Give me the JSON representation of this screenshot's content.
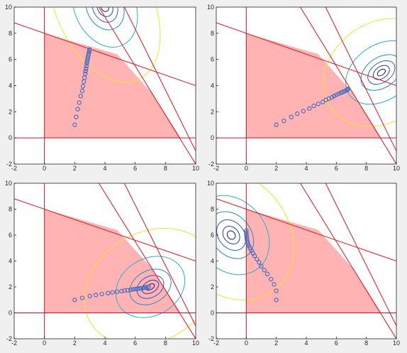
{
  "figure_background": "#f0f0f0",
  "colors": {
    "feasible_fill": "#ffb3b3",
    "constraint_line": "#e8141e",
    "axis_line": "#d0102a",
    "iterate_marker": "#4a6fbf",
    "contour_levels": [
      "#1a1a8c",
      "#2840b0",
      "#2a5ad0",
      "#1f8fc4",
      "#2ab0c8",
      "#f2e52b"
    ]
  },
  "chart_data": [
    {
      "type": "scatter",
      "panel": "top-left",
      "xlim": [
        -2,
        10
      ],
      "ylim": [
        -2,
        10
      ],
      "xticks": [
        -2,
        0,
        2,
        4,
        6,
        8,
        10
      ],
      "yticks": [
        -2,
        0,
        2,
        4,
        6,
        8,
        10
      ],
      "feasible_region": [
        [
          0,
          0
        ],
        [
          0,
          8
        ],
        [
          4.8,
          6.4
        ],
        [
          7.2,
          3.3
        ],
        [
          9,
          0
        ]
      ],
      "constraint_lines": [
        {
          "points": [
            [
              -2,
              8.8
            ],
            [
              10,
              4
            ]
          ]
        },
        {
          "points": [
            [
              2,
              13
            ],
            [
              10,
              -2
            ]
          ]
        },
        {
          "points": [
            [
              4,
              13
            ],
            [
              10,
              -1
            ]
          ]
        }
      ],
      "objective_center": [
        4,
        10
      ],
      "objective_contours": {
        "rx": [
          0.25,
          0.5,
          0.8,
          1.2,
          2.0,
          3.2
        ],
        "ry": [
          0.35,
          0.75,
          1.2,
          1.8,
          3.2,
          6.1
        ],
        "rotation_deg": -25
      },
      "iterates": {
        "x": [
          2.0,
          2.1,
          2.2,
          2.3,
          2.4,
          2.5,
          2.55,
          2.6,
          2.65,
          2.7,
          2.72,
          2.75,
          2.78,
          2.8,
          2.82,
          2.85,
          2.87,
          2.9,
          2.92,
          2.95,
          2.97,
          2.98
        ],
        "y": [
          1.0,
          1.6,
          2.2,
          2.7,
          3.2,
          3.6,
          3.95,
          4.3,
          4.6,
          4.9,
          5.1,
          5.3,
          5.5,
          5.7,
          5.85,
          6.0,
          6.15,
          6.3,
          6.42,
          6.55,
          6.65,
          6.75
        ]
      }
    },
    {
      "type": "scatter",
      "panel": "top-right",
      "xlim": [
        -2,
        10
      ],
      "ylim": [
        -2,
        10
      ],
      "xticks": [
        -2,
        0,
        2,
        4,
        6,
        8,
        10
      ],
      "yticks": [
        -2,
        0,
        2,
        4,
        6,
        8,
        10
      ],
      "feasible_region": [
        [
          0,
          0
        ],
        [
          0,
          8
        ],
        [
          4.8,
          6.4
        ],
        [
          7.2,
          3.3
        ],
        [
          9,
          0
        ]
      ],
      "constraint_lines": [
        {
          "points": [
            [
              -2,
              8.8
            ],
            [
              10,
              4
            ]
          ]
        },
        {
          "points": [
            [
              2,
              13
            ],
            [
              10,
              -2
            ]
          ]
        },
        {
          "points": [
            [
              4,
              13
            ],
            [
              10,
              -1
            ]
          ]
        }
      ],
      "objective_center": [
        9,
        5
      ],
      "objective_contours": {
        "rx": [
          0.3,
          0.6,
          1.0,
          1.5,
          2.6,
          4.1
        ],
        "ry": [
          0.2,
          0.45,
          0.75,
          1.15,
          2.1,
          3.8
        ],
        "rotation_deg": -35
      },
      "iterates": {
        "x": [
          2.0,
          2.5,
          3.0,
          3.4,
          3.8,
          4.2,
          4.5,
          4.8,
          5.1,
          5.3,
          5.5,
          5.7,
          5.85,
          6.0,
          6.15,
          6.3,
          6.4,
          6.5,
          6.6,
          6.7,
          6.75,
          6.8
        ],
        "y": [
          1.0,
          1.3,
          1.6,
          1.85,
          2.05,
          2.25,
          2.45,
          2.6,
          2.75,
          2.9,
          3.0,
          3.1,
          3.2,
          3.3,
          3.37,
          3.45,
          3.5,
          3.55,
          3.6,
          3.65,
          3.7,
          3.75
        ]
      }
    },
    {
      "type": "scatter",
      "panel": "bottom-left",
      "xlim": [
        -2,
        10
      ],
      "ylim": [
        -2,
        10
      ],
      "xticks": [
        -2,
        0,
        2,
        4,
        6,
        8,
        10
      ],
      "yticks": [
        -2,
        0,
        2,
        4,
        6,
        8,
        10
      ],
      "feasible_region": [
        [
          0,
          0
        ],
        [
          0,
          8
        ],
        [
          4.8,
          6.4
        ],
        [
          7.2,
          3.3
        ],
        [
          9,
          0
        ]
      ],
      "constraint_lines": [
        {
          "points": [
            [
              -2,
              8.8
            ],
            [
              10,
              4
            ]
          ]
        },
        {
          "points": [
            [
              2,
              13
            ],
            [
              10,
              -2
            ]
          ]
        },
        {
          "points": [
            [
              4,
              13
            ],
            [
              10,
              -1
            ]
          ]
        }
      ],
      "objective_center": [
        7,
        2
      ],
      "objective_contours": {
        "rx": [
          0.3,
          0.6,
          0.95,
          1.45,
          2.4,
          4.6
        ],
        "ry": [
          0.2,
          0.45,
          0.8,
          1.25,
          2.2,
          4.2
        ],
        "rotation_deg": -30
      },
      "iterates": {
        "x": [
          2.0,
          2.5,
          3.0,
          3.4,
          3.8,
          4.2,
          4.5,
          4.8,
          5.1,
          5.3,
          5.5,
          5.7,
          5.85,
          6.0,
          6.15,
          6.3,
          6.4,
          6.5,
          6.6,
          6.7,
          6.8,
          6.9
        ],
        "y": [
          1.0,
          1.15,
          1.3,
          1.38,
          1.45,
          1.52,
          1.58,
          1.63,
          1.68,
          1.72,
          1.75,
          1.78,
          1.81,
          1.84,
          1.86,
          1.88,
          1.9,
          1.92,
          1.94,
          1.96,
          1.98,
          2.0
        ]
      }
    },
    {
      "type": "scatter",
      "panel": "bottom-right",
      "xlim": [
        -2,
        10
      ],
      "ylim": [
        -2,
        10
      ],
      "xticks": [
        -2,
        0,
        2,
        4,
        6,
        8,
        10
      ],
      "yticks": [
        -2,
        0,
        2,
        4,
        6,
        8,
        10
      ],
      "feasible_region": [
        [
          0,
          0
        ],
        [
          0,
          8
        ],
        [
          4.8,
          6.4
        ],
        [
          7.2,
          3.3
        ],
        [
          9,
          0
        ]
      ],
      "constraint_lines": [
        {
          "points": [
            [
              -2,
              8.8
            ],
            [
              10,
              4
            ]
          ]
        },
        {
          "points": [
            [
              2,
              13
            ],
            [
              10,
              -2
            ]
          ]
        },
        {
          "points": [
            [
              4,
              13
            ],
            [
              10,
              -1
            ]
          ]
        }
      ],
      "objective_center": [
        -1,
        6
      ],
      "objective_contours": {
        "rx": [
          0.25,
          0.5,
          0.85,
          1.3,
          2.3,
          3.8
        ],
        "ry": [
          0.35,
          0.75,
          1.3,
          2.0,
          3.3,
          5.4
        ],
        "rotation_deg": -40
      },
      "iterates": {
        "x": [
          2.0,
          2.0,
          1.85,
          1.65,
          1.4,
          1.2,
          1.0,
          0.85,
          0.7,
          0.55,
          0.45,
          0.35,
          0.25,
          0.18,
          0.12,
          0.08,
          0.05,
          0.03,
          0.02,
          0.01,
          0.0,
          0.0
        ],
        "y": [
          1.0,
          1.7,
          2.2,
          2.6,
          3.0,
          3.3,
          3.6,
          3.9,
          4.15,
          4.4,
          4.6,
          4.8,
          5.0,
          5.15,
          5.3,
          5.45,
          5.6,
          5.75,
          5.9,
          6.05,
          6.2,
          6.35
        ]
      }
    }
  ]
}
